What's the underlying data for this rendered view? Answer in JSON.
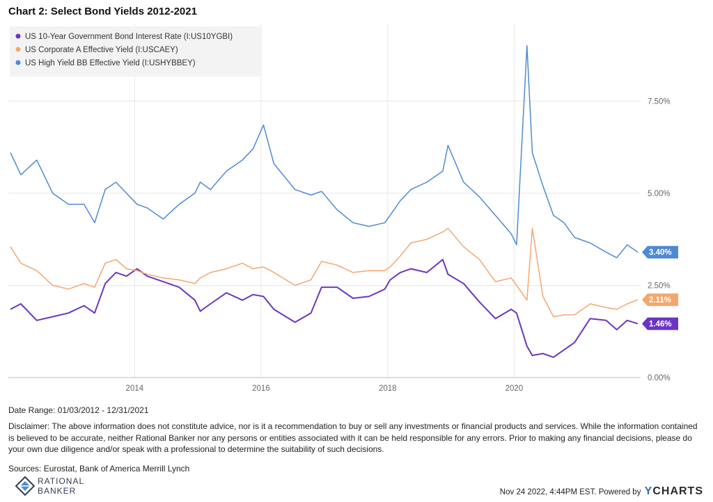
{
  "chart_data": {
    "type": "line",
    "title": "Chart 2:  Select Bond Yields 2012-2021",
    "x_range": [
      "2012-01-03",
      "2021-12-31"
    ],
    "x_ticks": [
      "2014",
      "2016",
      "2018",
      "2020"
    ],
    "y_ticks": [
      "7.50%",
      "5.00%",
      "2.50%",
      "0.00%"
    ],
    "ylim": [
      0,
      9.6
    ],
    "legend_position": "top-left",
    "grid": true,
    "series": [
      {
        "name": "US 10-Year Government Bond Interest Rate (I:US10YGBI)",
        "color": "#6a35c4",
        "end_label": "1.46%",
        "x": [
          "2012-01",
          "2012-03",
          "2012-06",
          "2012-09",
          "2012-12",
          "2013-03",
          "2013-05",
          "2013-07",
          "2013-09",
          "2013-11",
          "2014-01",
          "2014-03",
          "2014-06",
          "2014-09",
          "2014-12",
          "2015-01",
          "2015-03",
          "2015-06",
          "2015-09",
          "2015-11",
          "2016-01",
          "2016-03",
          "2016-07",
          "2016-10",
          "2016-12",
          "2017-03",
          "2017-06",
          "2017-09",
          "2017-12",
          "2018-01",
          "2018-03",
          "2018-05",
          "2018-08",
          "2018-11",
          "2018-12",
          "2019-03",
          "2019-06",
          "2019-09",
          "2019-12",
          "2020-01",
          "2020-03",
          "2020-04",
          "2020-06",
          "2020-08",
          "2020-10",
          "2020-12",
          "2021-03",
          "2021-06",
          "2021-08",
          "2021-10",
          "2021-12"
        ],
        "y": [
          1.85,
          2.0,
          1.55,
          1.65,
          1.75,
          1.95,
          1.75,
          2.55,
          2.85,
          2.75,
          2.95,
          2.75,
          2.6,
          2.45,
          2.1,
          1.8,
          2.0,
          2.3,
          2.1,
          2.25,
          2.2,
          1.85,
          1.5,
          1.75,
          2.45,
          2.45,
          2.15,
          2.2,
          2.4,
          2.65,
          2.85,
          2.95,
          2.85,
          3.2,
          2.8,
          2.55,
          2.05,
          1.6,
          1.85,
          1.75,
          0.85,
          0.6,
          0.65,
          0.55,
          0.75,
          0.95,
          1.6,
          1.55,
          1.3,
          1.55,
          1.46
        ]
      },
      {
        "name": "US Corporate A Effective Yield (I:USCAEY)",
        "color": "#f5a66e",
        "end_label": "2.11%",
        "x": [
          "2012-01",
          "2012-03",
          "2012-06",
          "2012-09",
          "2012-12",
          "2013-03",
          "2013-05",
          "2013-07",
          "2013-09",
          "2013-11",
          "2014-01",
          "2014-03",
          "2014-06",
          "2014-09",
          "2014-12",
          "2015-01",
          "2015-03",
          "2015-06",
          "2015-09",
          "2015-11",
          "2016-01",
          "2016-03",
          "2016-07",
          "2016-10",
          "2016-12",
          "2017-03",
          "2017-06",
          "2017-09",
          "2017-12",
          "2018-01",
          "2018-03",
          "2018-05",
          "2018-08",
          "2018-11",
          "2018-12",
          "2019-03",
          "2019-06",
          "2019-09",
          "2019-12",
          "2020-01",
          "2020-03",
          "2020-04",
          "2020-06",
          "2020-08",
          "2020-10",
          "2020-12",
          "2021-03",
          "2021-06",
          "2021-08",
          "2021-10",
          "2021-12"
        ],
        "y": [
          3.55,
          3.1,
          2.9,
          2.5,
          2.4,
          2.55,
          2.45,
          3.1,
          3.2,
          2.95,
          2.9,
          2.8,
          2.7,
          2.65,
          2.55,
          2.7,
          2.85,
          2.95,
          3.1,
          2.95,
          3.0,
          2.85,
          2.5,
          2.65,
          3.15,
          3.05,
          2.85,
          2.9,
          2.9,
          3.0,
          3.3,
          3.65,
          3.75,
          3.95,
          4.05,
          3.55,
          3.2,
          2.6,
          2.7,
          2.5,
          2.1,
          4.05,
          2.2,
          1.65,
          1.7,
          1.7,
          2.0,
          1.9,
          1.85,
          2.0,
          2.11
        ]
      },
      {
        "name": "US High Yield BB Effective Yield (I:USHYBBEY)",
        "color": "#4e8ad4",
        "end_label": "3.40%",
        "x": [
          "2012-01",
          "2012-03",
          "2012-06",
          "2012-09",
          "2012-12",
          "2013-03",
          "2013-05",
          "2013-07",
          "2013-09",
          "2013-11",
          "2014-01",
          "2014-03",
          "2014-06",
          "2014-09",
          "2014-12",
          "2015-01",
          "2015-03",
          "2015-06",
          "2015-09",
          "2015-11",
          "2016-01",
          "2016-03",
          "2016-07",
          "2016-10",
          "2016-12",
          "2017-03",
          "2017-06",
          "2017-09",
          "2017-12",
          "2018-01",
          "2018-03",
          "2018-05",
          "2018-08",
          "2018-11",
          "2018-12",
          "2019-03",
          "2019-06",
          "2019-09",
          "2019-12",
          "2020-01",
          "2020-03",
          "2020-04",
          "2020-06",
          "2020-08",
          "2020-10",
          "2020-12",
          "2021-03",
          "2021-06",
          "2021-08",
          "2021-10",
          "2021-12"
        ],
        "y": [
          6.1,
          5.5,
          5.9,
          5.0,
          4.7,
          4.7,
          4.2,
          5.1,
          5.3,
          5.0,
          4.7,
          4.6,
          4.3,
          4.7,
          5.0,
          5.3,
          5.1,
          5.6,
          5.9,
          6.2,
          6.85,
          5.8,
          5.1,
          4.95,
          5.05,
          4.55,
          4.2,
          4.1,
          4.2,
          4.4,
          4.8,
          5.1,
          5.3,
          5.6,
          6.3,
          5.3,
          4.9,
          4.4,
          3.9,
          3.6,
          9.0,
          6.1,
          5.2,
          4.4,
          4.2,
          3.8,
          3.65,
          3.4,
          3.25,
          3.6,
          3.4
        ]
      }
    ]
  },
  "footer": {
    "date_range": "Date Range: 01/03/2012 - 12/31/2021",
    "disclaimer": "Disclaimer:  The above information does not constitute advice, nor is it a recommendation to buy or sell any investments or financial products and services.  While the information contained is believed to be accurate, neither Rational Banker nor any persons or entities associated with it can be held responsible for any errors.  Prior to making any financial decisions, please do your own due diligence and/or speak with a professional to determine the suitability of such decisions.",
    "sources": "Sources: Eurostat, Bank of America Merrill Lynch",
    "brand_name": "RATIONAL\nBANKER",
    "timestamp": "Nov 24 2022, 4:44PM EST.",
    "powered_by": "Powered by",
    "ycharts_y": "Y",
    "ycharts_rest": "CHARTS"
  }
}
